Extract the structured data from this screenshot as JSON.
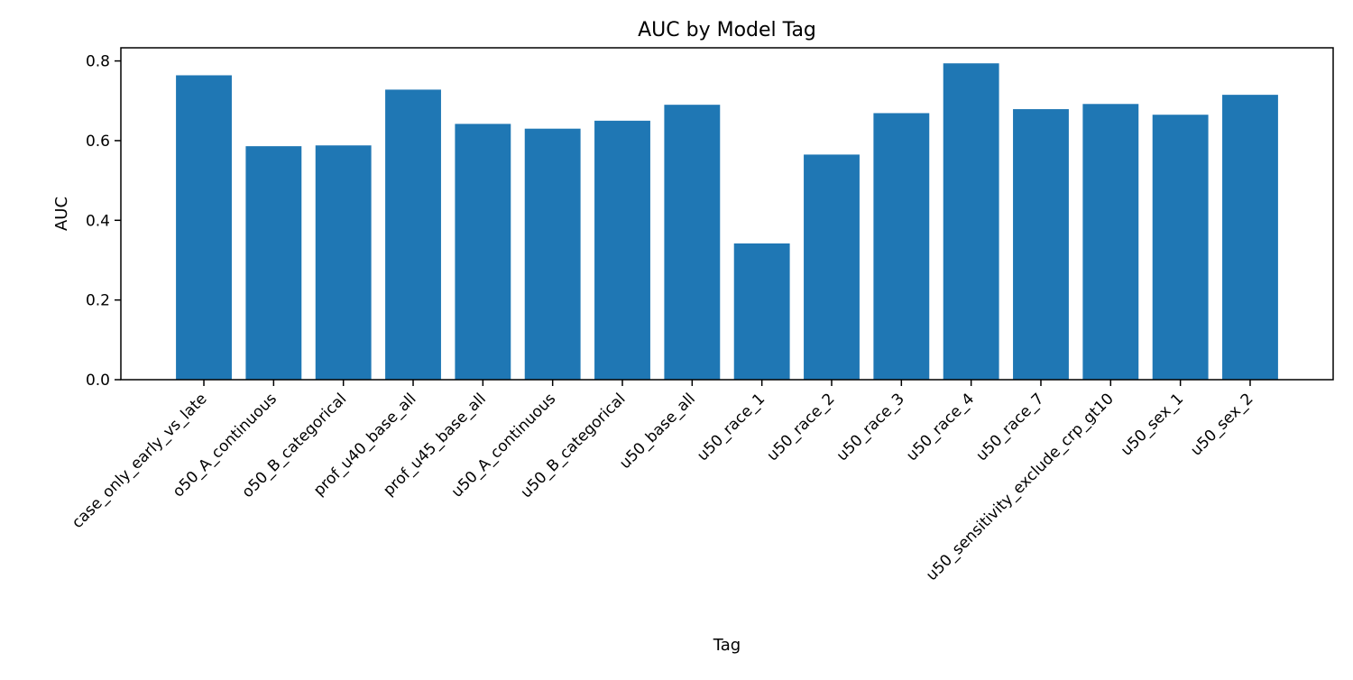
{
  "chart_data": {
    "type": "bar",
    "title": "AUC by Model Tag",
    "xlabel": "Tag",
    "ylabel": "AUC",
    "categories": [
      "case_only_early_vs_late",
      "o50_A_continuous",
      "o50_B_categorical",
      "prof_u40_base_all",
      "prof_u45_base_all",
      "u50_A_continuous",
      "u50_B_categorical",
      "u50_base_all",
      "u50_race_1",
      "u50_race_2",
      "u50_race_3",
      "u50_race_4",
      "u50_race_7",
      "u50_sensitivity_exclude_crp_gt10",
      "u50_sex_1",
      "u50_sex_2"
    ],
    "values": [
      0.764,
      0.586,
      0.588,
      0.728,
      0.642,
      0.63,
      0.65,
      0.69,
      0.342,
      0.565,
      0.669,
      0.794,
      0.679,
      0.692,
      0.665,
      0.715
    ],
    "ylim": [
      0,
      0.833
    ],
    "yticks": [
      "0.0",
      "0.2",
      "0.4",
      "0.6",
      "0.8"
    ],
    "ytick_values": [
      0,
      0.2,
      0.4,
      0.6,
      0.8
    ],
    "grid": false,
    "bar_color": "#1f77b4"
  }
}
